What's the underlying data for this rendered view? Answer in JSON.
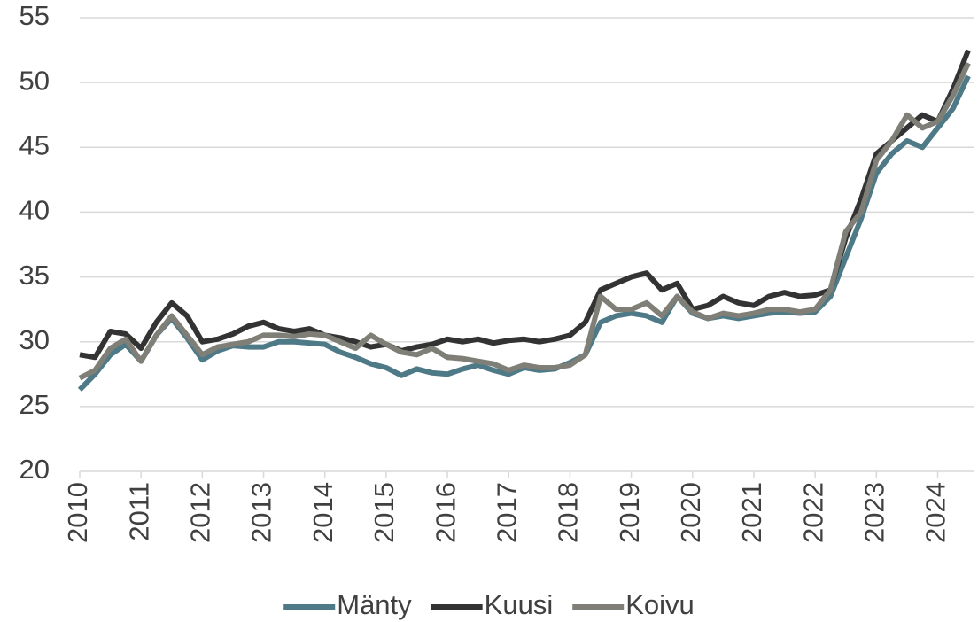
{
  "chart_data": {
    "type": "line",
    "x": [
      2010,
      2010.25,
      2010.5,
      2010.75,
      2011,
      2011.25,
      2011.5,
      2011.75,
      2012,
      2012.25,
      2012.5,
      2012.75,
      2013,
      2013.25,
      2013.5,
      2013.75,
      2014,
      2014.25,
      2014.5,
      2014.75,
      2015,
      2015.25,
      2015.5,
      2015.75,
      2016,
      2016.25,
      2016.5,
      2016.75,
      2017,
      2017.25,
      2017.5,
      2017.75,
      2018,
      2018.25,
      2018.5,
      2018.75,
      2019,
      2019.25,
      2019.5,
      2019.75,
      2020,
      2020.25,
      2020.5,
      2020.75,
      2021,
      2021.25,
      2021.5,
      2021.75,
      2022,
      2022.25,
      2022.5,
      2022.75,
      2023,
      2023.25,
      2023.5,
      2023.75,
      2024,
      2024.25,
      2024.5
    ],
    "series": [
      {
        "name": "Mänty",
        "color": "#4e7a87",
        "values": [
          26.3,
          27.5,
          29.0,
          29.8,
          28.5,
          30.5,
          31.8,
          30.3,
          28.6,
          29.3,
          29.7,
          29.6,
          29.6,
          30.0,
          30.0,
          29.9,
          29.8,
          29.2,
          28.8,
          28.3,
          28.0,
          27.4,
          27.9,
          27.6,
          27.5,
          27.9,
          28.2,
          27.8,
          27.5,
          28.0,
          27.8,
          27.9,
          28.4,
          29.0,
          31.5,
          32.0,
          32.2,
          32.0,
          31.5,
          33.5,
          32.2,
          31.8,
          32.0,
          31.8,
          32.0,
          32.2,
          32.3,
          32.2,
          32.3,
          33.5,
          36.5,
          39.5,
          43.0,
          44.5,
          45.5,
          45.0,
          46.5,
          48.0,
          50.5
        ]
      },
      {
        "name": "Kuusi",
        "color": "#333333",
        "values": [
          29.0,
          28.8,
          30.8,
          30.6,
          29.5,
          31.5,
          33.0,
          32.0,
          30.0,
          30.2,
          30.6,
          31.2,
          31.5,
          31.0,
          30.8,
          31.0,
          30.5,
          30.3,
          30.0,
          29.6,
          29.8,
          29.3,
          29.6,
          29.8,
          30.2,
          30.0,
          30.2,
          29.9,
          30.1,
          30.2,
          30.0,
          30.2,
          30.5,
          31.5,
          34.0,
          34.5,
          35.0,
          35.3,
          34.0,
          34.5,
          32.5,
          32.8,
          33.5,
          33.0,
          32.8,
          33.5,
          33.8,
          33.5,
          33.6,
          34.0,
          38.0,
          41.0,
          44.5,
          45.5,
          46.5,
          47.5,
          47.0,
          49.5,
          52.5
        ]
      },
      {
        "name": "Koivu",
        "color": "#7f7f77",
        "values": [
          27.2,
          27.8,
          29.5,
          30.2,
          28.5,
          30.5,
          32.0,
          30.5,
          29.0,
          29.6,
          29.8,
          30.0,
          30.5,
          30.5,
          30.4,
          30.6,
          30.5,
          30.0,
          29.5,
          30.5,
          29.8,
          29.2,
          29.0,
          29.5,
          28.8,
          28.7,
          28.5,
          28.3,
          27.8,
          28.2,
          28.0,
          28.0,
          28.2,
          29.0,
          33.5,
          32.5,
          32.5,
          33.0,
          32.0,
          33.5,
          32.3,
          31.8,
          32.2,
          32.0,
          32.2,
          32.5,
          32.5,
          32.3,
          32.5,
          34.0,
          38.5,
          40.0,
          44.0,
          45.5,
          47.5,
          46.5,
          47.0,
          49.0,
          51.5
        ]
      }
    ],
    "xlim": [
      2010,
      2024.6
    ],
    "xticks": [
      2010,
      2011,
      2012,
      2013,
      2014,
      2015,
      2016,
      2017,
      2018,
      2019,
      2020,
      2021,
      2022,
      2023,
      2024
    ],
    "ylim": [
      20,
      55
    ],
    "yticks": [
      20,
      25,
      30,
      35,
      40,
      45,
      50,
      55
    ],
    "grid": true,
    "legend": "bottom"
  }
}
